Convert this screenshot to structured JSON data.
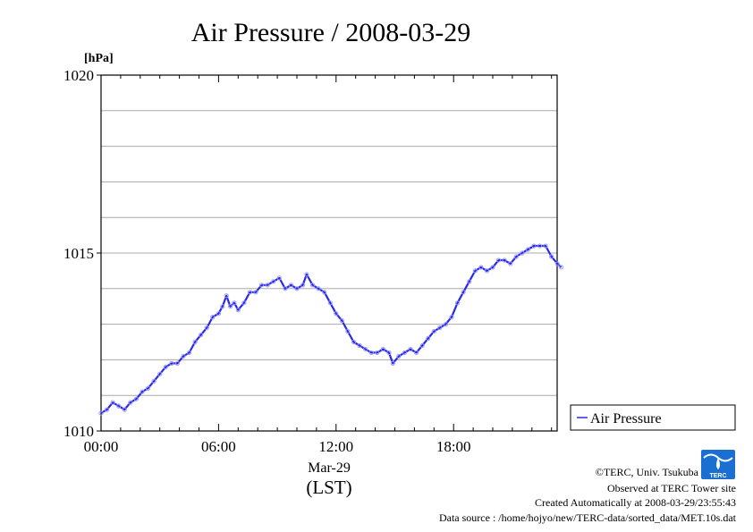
{
  "chart_data": {
    "type": "line",
    "title": "Air Pressure / 2008-03-29",
    "ylabel": "[hPa]",
    "xlabel": "Mar-29",
    "xunit": "(LST)",
    "ylim": [
      1010,
      1020
    ],
    "xlim": [
      0,
      23.5
    ],
    "yticks": [
      "1010",
      "1015",
      "1020"
    ],
    "xticks": [
      {
        "h": 0,
        "label": "00:00"
      },
      {
        "h": 6,
        "label": "06:00"
      },
      {
        "h": 12,
        "label": "12:00"
      },
      {
        "h": 18,
        "label": "18:00"
      }
    ],
    "grid": true,
    "legend_position": "right",
    "series": [
      {
        "name": "Air Pressure",
        "color": "#2a2ae6",
        "marker_color": "#9a9aff",
        "points": [
          [
            0.0,
            1010.5
          ],
          [
            0.3,
            1010.6
          ],
          [
            0.6,
            1010.8
          ],
          [
            0.9,
            1010.7
          ],
          [
            1.2,
            1010.6
          ],
          [
            1.5,
            1010.8
          ],
          [
            1.8,
            1010.9
          ],
          [
            2.1,
            1011.1
          ],
          [
            2.4,
            1011.2
          ],
          [
            2.7,
            1011.4
          ],
          [
            3.0,
            1011.6
          ],
          [
            3.3,
            1011.8
          ],
          [
            3.6,
            1011.9
          ],
          [
            3.9,
            1011.9
          ],
          [
            4.2,
            1012.1
          ],
          [
            4.5,
            1012.2
          ],
          [
            4.8,
            1012.5
          ],
          [
            5.1,
            1012.7
          ],
          [
            5.4,
            1012.9
          ],
          [
            5.7,
            1013.2
          ],
          [
            6.0,
            1013.3
          ],
          [
            6.2,
            1013.5
          ],
          [
            6.4,
            1013.8
          ],
          [
            6.6,
            1013.5
          ],
          [
            6.8,
            1013.6
          ],
          [
            7.0,
            1013.4
          ],
          [
            7.3,
            1013.6
          ],
          [
            7.6,
            1013.9
          ],
          [
            7.9,
            1013.9
          ],
          [
            8.2,
            1014.1
          ],
          [
            8.5,
            1014.1
          ],
          [
            8.8,
            1014.2
          ],
          [
            9.1,
            1014.3
          ],
          [
            9.4,
            1014.0
          ],
          [
            9.7,
            1014.1
          ],
          [
            10.0,
            1014.0
          ],
          [
            10.3,
            1014.1
          ],
          [
            10.5,
            1014.4
          ],
          [
            10.8,
            1014.1
          ],
          [
            11.1,
            1014.0
          ],
          [
            11.4,
            1013.9
          ],
          [
            11.7,
            1013.6
          ],
          [
            12.0,
            1013.3
          ],
          [
            12.3,
            1013.1
          ],
          [
            12.6,
            1012.8
          ],
          [
            12.9,
            1012.5
          ],
          [
            13.2,
            1012.4
          ],
          [
            13.5,
            1012.3
          ],
          [
            13.8,
            1012.2
          ],
          [
            14.1,
            1012.2
          ],
          [
            14.4,
            1012.3
          ],
          [
            14.7,
            1012.2
          ],
          [
            14.9,
            1011.9
          ],
          [
            15.2,
            1012.1
          ],
          [
            15.5,
            1012.2
          ],
          [
            15.8,
            1012.3
          ],
          [
            16.1,
            1012.2
          ],
          [
            16.4,
            1012.4
          ],
          [
            16.7,
            1012.6
          ],
          [
            17.0,
            1012.8
          ],
          [
            17.3,
            1012.9
          ],
          [
            17.6,
            1013.0
          ],
          [
            17.9,
            1013.2
          ],
          [
            18.2,
            1013.6
          ],
          [
            18.5,
            1013.9
          ],
          [
            18.8,
            1014.2
          ],
          [
            19.1,
            1014.5
          ],
          [
            19.4,
            1014.6
          ],
          [
            19.7,
            1014.5
          ],
          [
            20.0,
            1014.6
          ],
          [
            20.3,
            1014.8
          ],
          [
            20.6,
            1014.8
          ],
          [
            20.9,
            1014.7
          ],
          [
            21.2,
            1014.9
          ],
          [
            21.5,
            1015.0
          ],
          [
            21.8,
            1015.1
          ],
          [
            22.1,
            1015.2
          ],
          [
            22.4,
            1015.2
          ],
          [
            22.7,
            1015.2
          ],
          [
            23.0,
            1014.9
          ],
          [
            23.3,
            1014.7
          ],
          [
            23.5,
            1014.6
          ]
        ]
      }
    ]
  },
  "footer": {
    "copyright": "©TERC, Univ. Tsukuba",
    "observed": "Observed at TERC Tower site",
    "created": "Created Automatically at 2008-03-29/23:55:43",
    "source": "Data source : /home/hojyo/new/TERC-data/sorted_data/MET.10s.dat"
  },
  "logo": {
    "text": "TERC",
    "color": "#1a6fd1",
    "icon": "terc-logo-icon"
  }
}
